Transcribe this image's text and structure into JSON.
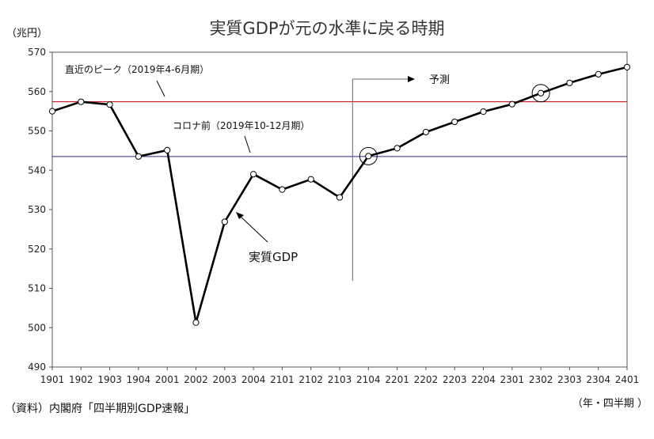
{
  "chart_data": {
    "type": "line",
    "title": "実質GDPが元の水準に戻る時期",
    "ylabel": "（兆円）",
    "xlabel": "（年・四半期 ）",
    "source": "（資料）内閣府「四半期別GDP速報」",
    "ylim": [
      490,
      570
    ],
    "yticks": [
      490,
      500,
      510,
      520,
      530,
      540,
      550,
      560,
      570
    ],
    "categories": [
      "1901",
      "1902",
      "1903",
      "1904",
      "2001",
      "2002",
      "2003",
      "2004",
      "2101",
      "2102",
      "2103",
      "2104",
      "2201",
      "2202",
      "2203",
      "2204",
      "2301",
      "2302",
      "2303",
      "2304",
      "2401"
    ],
    "series": [
      {
        "name": "実質GDP",
        "values": [
          555.0,
          557.4,
          556.7,
          543.5,
          545.1,
          501.3,
          526.9,
          539.0,
          535.1,
          537.7,
          533.1,
          543.6,
          545.6,
          549.7,
          552.3,
          554.9,
          556.8,
          559.6,
          562.2,
          564.4,
          566.2
        ]
      }
    ],
    "reference_lines": [
      {
        "label": "直近のピーク（2019年4-6月期）",
        "value": 557.4,
        "color": "#c0000a"
      },
      {
        "label": "コロナ前（2019年10-12月期）",
        "value": 543.5,
        "color": "#3a1e8a"
      }
    ],
    "forecast_label": "予測",
    "forecast_start": "2104",
    "highlight_points": [
      "2104",
      "2302"
    ],
    "grid": false,
    "legend": "none"
  }
}
